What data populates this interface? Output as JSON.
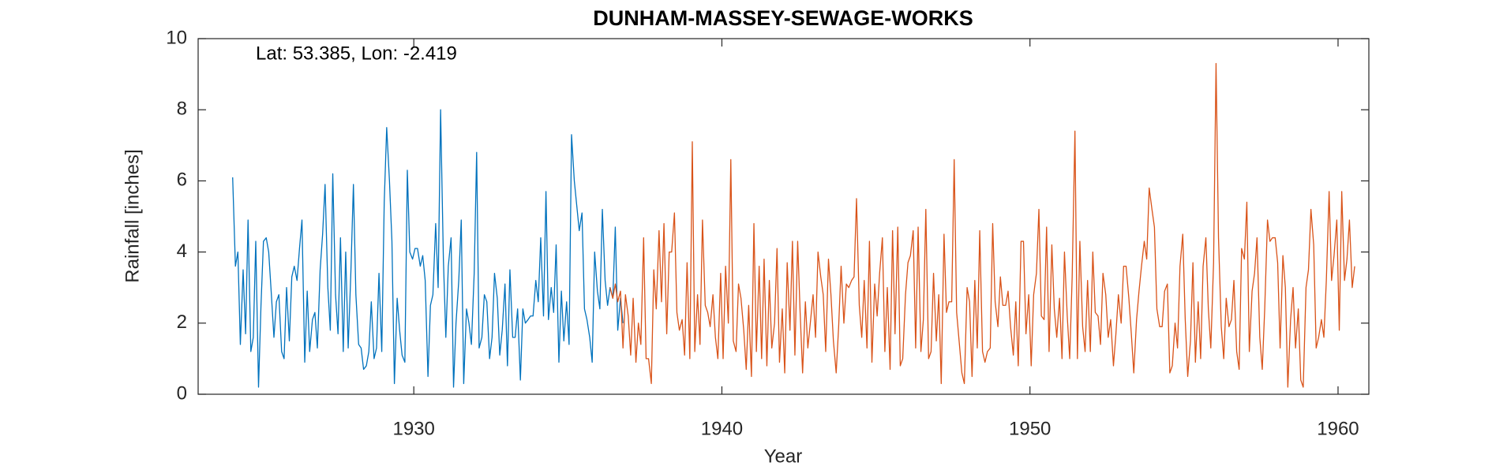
{
  "chart_data": {
    "type": "line",
    "title": "DUNHAM-MASSEY-SEWAGE-WORKS",
    "annotation": "Lat: 53.385, Lon: -2.419",
    "xlabel": "Year",
    "ylabel": "Rainfall [inches]",
    "xlim": [
      1923,
      1961
    ],
    "xticks": [
      1930,
      1940,
      1950,
      1960
    ],
    "ylim": [
      0,
      10
    ],
    "yticks": [
      0,
      2,
      4,
      6,
      8,
      10
    ],
    "grid": false,
    "series": [
      {
        "color": "#0072bd",
        "x": [
          1924.12,
          1924.21,
          1924.29,
          1924.37,
          1924.46,
          1924.54,
          1924.62,
          1924.71,
          1924.79,
          1924.87,
          1924.96,
          1925.04,
          1925.12,
          1925.21,
          1925.29,
          1925.37,
          1925.46,
          1925.54,
          1925.62,
          1925.71,
          1925.79,
          1925.87,
          1925.96,
          1926.04,
          1926.12,
          1926.21,
          1926.29,
          1926.37,
          1926.46,
          1926.54,
          1926.62,
          1926.71,
          1926.79,
          1926.87,
          1926.96,
          1927.04,
          1927.12,
          1927.21,
          1927.29,
          1927.37,
          1927.46,
          1927.54,
          1927.62,
          1927.71,
          1927.79,
          1927.87,
          1927.96,
          1928.04,
          1928.12,
          1928.21,
          1928.29,
          1928.37,
          1928.46,
          1928.54,
          1928.62,
          1928.71,
          1928.79,
          1928.87,
          1928.96,
          1929.04,
          1929.12,
          1929.21,
          1929.29,
          1929.37,
          1929.46,
          1929.54,
          1929.62,
          1929.71,
          1929.79,
          1929.87,
          1929.96,
          1930.04,
          1930.12,
          1930.21,
          1930.29,
          1930.37,
          1930.46,
          1930.54,
          1930.62,
          1930.71,
          1930.79,
          1930.87,
          1930.96,
          1931.04,
          1931.12,
          1931.21,
          1931.29,
          1931.37,
          1931.46,
          1931.54,
          1931.62,
          1931.71,
          1931.79,
          1931.87,
          1931.96,
          1932.04,
          1932.12,
          1932.21,
          1932.29,
          1932.37,
          1932.46,
          1932.54,
          1932.62,
          1932.71,
          1932.79,
          1932.87,
          1932.96,
          1933.04,
          1933.12,
          1933.21,
          1933.29,
          1933.37,
          1933.46,
          1933.54,
          1933.62,
          1933.71,
          1933.79,
          1933.87,
          1933.96,
          1934.04,
          1934.12,
          1934.21,
          1934.29,
          1934.37,
          1934.46,
          1934.54,
          1934.62,
          1934.71,
          1934.79,
          1934.87,
          1934.96,
          1935.04,
          1935.12,
          1935.21,
          1935.29,
          1935.37,
          1935.46,
          1935.54,
          1935.62,
          1935.71,
          1935.79,
          1935.87,
          1935.96,
          1936.04,
          1936.12,
          1936.21,
          1936.29,
          1936.37,
          1936.46,
          1936.54,
          1936.62,
          1936.71,
          1936.79
        ],
        "values": [
          6.1,
          3.6,
          4.0,
          1.4,
          3.5,
          1.7,
          4.9,
          1.2,
          1.6,
          4.3,
          0.2,
          2.5,
          4.3,
          4.4,
          4.0,
          2.9,
          1.6,
          2.6,
          2.8,
          1.2,
          1.0,
          3.0,
          1.5,
          3.3,
          3.6,
          3.2,
          4.1,
          4.9,
          0.9,
          2.9,
          1.2,
          2.1,
          2.3,
          1.3,
          3.5,
          4.5,
          5.9,
          3.0,
          1.8,
          6.2,
          2.8,
          1.7,
          4.4,
          1.2,
          4.0,
          1.3,
          3.5,
          5.9,
          2.8,
          1.4,
          1.3,
          0.7,
          0.8,
          1.2,
          2.6,
          1.0,
          1.3,
          3.4,
          1.2,
          5.4,
          7.5,
          6.0,
          4.3,
          0.3,
          2.7,
          1.8,
          1.1,
          0.9,
          6.3,
          4.0,
          3.8,
          4.1,
          4.1,
          3.6,
          3.9,
          3.2,
          0.5,
          2.5,
          2.8,
          4.8,
          3.0,
          8.0,
          3.8,
          1.6,
          3.6,
          4.4,
          0.2,
          2.0,
          3.2,
          4.9,
          0.3,
          2.4,
          2.0,
          1.4,
          3.4,
          6.8,
          1.3,
          1.6,
          2.8,
          2.6,
          1.0,
          1.6,
          3.4,
          2.7,
          1.1,
          1.8,
          3.1,
          0.8,
          3.5,
          1.6,
          1.6,
          2.4,
          0.4,
          2.4,
          2.0,
          2.1,
          2.2,
          2.2,
          3.2,
          2.6,
          4.4,
          2.2,
          5.7,
          2.1,
          3.0,
          2.3,
          4.2,
          0.9,
          2.9,
          1.5,
          2.6,
          1.4,
          7.3,
          6.0,
          5.3,
          4.6,
          5.1,
          2.4,
          2.1,
          1.6,
          0.9,
          4.0,
          2.9,
          2.4,
          5.2,
          3.2,
          2.5,
          3.0,
          2.7,
          4.7,
          1.8,
          2.7,
          2.0
        ]
      },
      {
        "color": "#d95319",
        "x": [
          1936.37,
          1936.46,
          1936.54,
          1936.62,
          1936.71,
          1936.79,
          1936.87,
          1936.96,
          1937.04,
          1937.12,
          1937.21,
          1937.29,
          1937.37,
          1937.46,
          1937.54,
          1937.62,
          1937.71,
          1937.79,
          1937.87,
          1937.96,
          1938.04,
          1938.12,
          1938.21,
          1938.29,
          1938.37,
          1938.46,
          1938.54,
          1938.62,
          1938.71,
          1938.79,
          1938.87,
          1938.96,
          1939.04,
          1939.12,
          1939.21,
          1939.29,
          1939.37,
          1939.46,
          1939.54,
          1939.62,
          1939.71,
          1939.79,
          1939.87,
          1939.96,
          1940.04,
          1940.12,
          1940.21,
          1940.29,
          1940.37,
          1940.46,
          1940.54,
          1940.62,
          1940.71,
          1940.79,
          1940.87,
          1940.96,
          1941.04,
          1941.12,
          1941.21,
          1941.29,
          1941.37,
          1941.46,
          1941.54,
          1941.62,
          1941.71,
          1941.79,
          1941.87,
          1941.96,
          1942.04,
          1942.12,
          1942.21,
          1942.29,
          1942.37,
          1942.46,
          1942.54,
          1942.62,
          1942.71,
          1942.79,
          1942.87,
          1942.96,
          1943.04,
          1943.12,
          1943.21,
          1943.29,
          1943.37,
          1943.46,
          1943.54,
          1943.62,
          1943.71,
          1943.79,
          1943.87,
          1943.96,
          1944.04,
          1944.12,
          1944.21,
          1944.29,
          1944.37,
          1944.46,
          1944.54,
          1944.62,
          1944.71,
          1944.79,
          1944.87,
          1944.96,
          1945.04,
          1945.12,
          1945.21,
          1945.29,
          1945.37,
          1945.46,
          1945.54,
          1945.62,
          1945.71,
          1945.79,
          1945.87,
          1945.96,
          1946.04,
          1946.12,
          1946.21,
          1946.29,
          1946.37,
          1946.46,
          1946.54,
          1946.62,
          1946.71,
          1946.79,
          1946.87,
          1946.96,
          1947.04,
          1947.12,
          1947.21,
          1947.29,
          1947.37,
          1947.46,
          1947.54,
          1947.62,
          1947.71,
          1947.79,
          1947.87,
          1947.96,
          1948.04,
          1948.12,
          1948.21,
          1948.29,
          1948.37,
          1948.46,
          1948.54,
          1948.62,
          1948.71,
          1948.79,
          1948.87,
          1948.96,
          1949.04,
          1949.12,
          1949.21,
          1949.29,
          1949.37,
          1949.46,
          1949.54,
          1949.62,
          1949.71,
          1949.79,
          1949.87,
          1949.96,
          1950.04,
          1950.12,
          1950.21,
          1950.29,
          1950.37,
          1950.46,
          1950.54,
          1950.62,
          1950.71,
          1950.79,
          1950.87,
          1950.96,
          1951.04,
          1951.12,
          1951.21,
          1951.29,
          1951.37,
          1951.46,
          1951.54,
          1951.62,
          1951.71,
          1951.79,
          1951.87,
          1951.96,
          1952.04,
          1952.12,
          1952.21,
          1952.29,
          1952.37,
          1952.46,
          1952.54,
          1952.62,
          1952.71,
          1952.79,
          1952.87,
          1952.96,
          1953.04,
          1953.12,
          1953.21,
          1953.29,
          1953.37,
          1953.46,
          1953.54,
          1953.62,
          1953.71,
          1953.79,
          1953.87,
          1953.96,
          1954.04,
          1954.12,
          1954.21,
          1954.29,
          1954.37,
          1954.46,
          1954.54,
          1954.62,
          1954.71,
          1954.79,
          1954.87,
          1954.96,
          1955.04,
          1955.12,
          1955.21,
          1955.29,
          1955.37,
          1955.46,
          1955.54,
          1955.62,
          1955.71,
          1955.79,
          1955.87,
          1955.96,
          1956.04,
          1956.12,
          1956.21,
          1956.29,
          1956.37,
          1956.46,
          1956.54,
          1956.62,
          1956.71,
          1956.79,
          1956.87,
          1956.96,
          1957.04,
          1957.12,
          1957.21,
          1957.29,
          1957.37,
          1957.46,
          1957.54,
          1957.62,
          1957.71,
          1957.79,
          1957.87,
          1957.96,
          1958.04,
          1958.12,
          1958.21,
          1958.29,
          1958.37,
          1958.46,
          1958.54,
          1958.62,
          1958.71,
          1958.79,
          1958.87,
          1958.96,
          1959.04,
          1959.12,
          1959.21,
          1959.29,
          1959.37,
          1959.46,
          1959.54,
          1959.62,
          1959.71,
          1959.79,
          1959.87,
          1959.96,
          1960.04,
          1960.12,
          1960.21,
          1960.29,
          1960.37,
          1960.46,
          1960.54
        ],
        "values": [
          3.0,
          2.7,
          3.1,
          2.6,
          2.9,
          1.3,
          2.8,
          2.2,
          1.1,
          2.7,
          0.9,
          2.0,
          1.4,
          4.4,
          1.0,
          1.0,
          0.3,
          3.5,
          2.4,
          4.6,
          2.6,
          4.8,
          1.7,
          4.0,
          4.0,
          5.1,
          2.3,
          1.8,
          2.1,
          1.1,
          3.7,
          1.0,
          7.1,
          1.2,
          2.8,
          1.4,
          4.9,
          2.5,
          2.3,
          1.9,
          2.8,
          1.6,
          1.0,
          3.4,
          1.0,
          3.6,
          2.0,
          6.6,
          1.5,
          1.2,
          3.1,
          2.7,
          1.8,
          0.7,
          2.5,
          0.5,
          4.8,
          1.2,
          3.6,
          1.0,
          3.8,
          0.8,
          3.2,
          1.3,
          2.0,
          4.1,
          0.9,
          2.4,
          0.6,
          3.7,
          1.8,
          4.3,
          1.1,
          4.3,
          2.3,
          0.6,
          2.6,
          1.3,
          2.0,
          2.8,
          1.6,
          4.0,
          3.3,
          2.8,
          1.2,
          3.8,
          2.8,
          1.5,
          0.6,
          1.9,
          3.6,
          2.0,
          3.1,
          3.0,
          3.2,
          3.3,
          5.5,
          2.5,
          1.6,
          3.2,
          1.3,
          4.3,
          0.9,
          3.1,
          2.2,
          3.4,
          4.4,
          1.2,
          3.0,
          0.7,
          4.6,
          1.7,
          4.7,
          0.8,
          1.0,
          2.8,
          3.7,
          3.9,
          4.6,
          1.3,
          4.7,
          1.2,
          2.1,
          5.2,
          1.0,
          1.2,
          3.4,
          1.5,
          2.8,
          0.3,
          4.5,
          2.3,
          2.6,
          2.6,
          6.6,
          2.3,
          1.4,
          0.6,
          0.3,
          3.0,
          2.6,
          0.5,
          3.2,
          1.3,
          4.6,
          1.2,
          0.9,
          1.2,
          1.3,
          4.8,
          2.6,
          1.9,
          3.3,
          2.5,
          2.5,
          2.9,
          1.9,
          1.1,
          2.6,
          0.8,
          4.3,
          4.3,
          1.7,
          2.8,
          0.8,
          2.8,
          3.4,
          5.2,
          2.2,
          2.1,
          4.7,
          1.2,
          4.2,
          2.4,
          1.6,
          2.7,
          1.0,
          4.0,
          2.2,
          1.0,
          3.3,
          7.4,
          1.0,
          4.3,
          1.9,
          1.2,
          3.2,
          1.2,
          4.0,
          2.3,
          2.2,
          1.4,
          3.4,
          2.8,
          1.6,
          2.1,
          0.8,
          1.7,
          2.8,
          2.0,
          3.6,
          3.6,
          2.7,
          1.7,
          0.6,
          2.1,
          2.9,
          3.6,
          4.3,
          3.8,
          5.8,
          5.2,
          4.7,
          2.4,
          1.9,
          1.9,
          2.9,
          3.1,
          0.6,
          0.8,
          2.0,
          1.3,
          3.6,
          4.5,
          2.1,
          0.5,
          1.5,
          3.7,
          0.9,
          2.6,
          1.0,
          3.6,
          4.4,
          2.4,
          1.3,
          3.7,
          9.3,
          4.4,
          1.9,
          1.0,
          2.7,
          1.9,
          2.1,
          3.2,
          1.2,
          0.7,
          4.1,
          3.8,
          5.4,
          1.2,
          2.9,
          3.4,
          4.4,
          1.6,
          0.7,
          2.4,
          4.9,
          4.3,
          4.4,
          4.4,
          3.7,
          1.3,
          3.9,
          3.0,
          0.2,
          2.1,
          3.0,
          1.3,
          2.4,
          0.4,
          0.2,
          3.0,
          3.5,
          5.2,
          4.2,
          1.3,
          1.6,
          2.1,
          1.6,
          3.2,
          5.7,
          3.2,
          3.9,
          4.9,
          1.8,
          5.7,
          3.2,
          3.8,
          4.9,
          3.0,
          3.6
        ]
      }
    ]
  }
}
